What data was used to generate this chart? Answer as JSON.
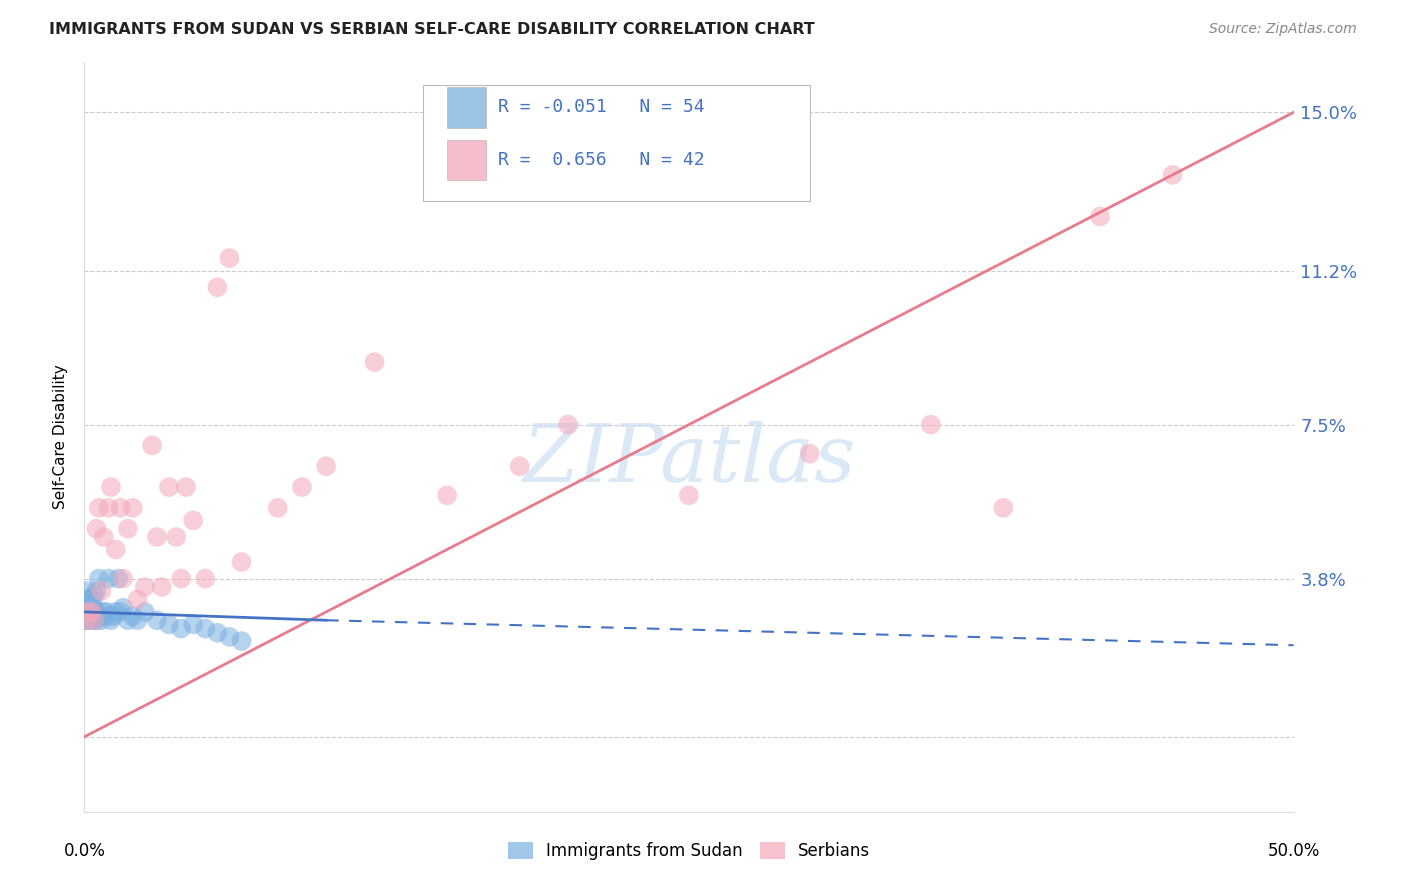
{
  "title": "IMMIGRANTS FROM SUDAN VS SERBIAN SELF-CARE DISABILITY CORRELATION CHART",
  "source": "Source: ZipAtlas.com",
  "ylabel": "Self-Care Disability",
  "yticks": [
    0.0,
    0.038,
    0.075,
    0.112,
    0.15
  ],
  "ytick_labels": [
    "",
    "3.8%",
    "7.5%",
    "11.2%",
    "15.0%"
  ],
  "xlim": [
    0.0,
    0.5
  ],
  "ylim": [
    -0.018,
    0.162
  ],
  "watermark": "ZIPatlas",
  "color_blue": "#7ab0e0",
  "color_pink": "#f4a7b9",
  "color_blue_line": "#4472c4",
  "color_pink_line": "#e87b8c",
  "sudan_x": [
    0.0002,
    0.0003,
    0.0004,
    0.0005,
    0.0006,
    0.0007,
    0.0008,
    0.0009,
    0.001,
    0.001,
    0.001,
    0.001,
    0.001,
    0.002,
    0.002,
    0.002,
    0.002,
    0.003,
    0.003,
    0.003,
    0.003,
    0.004,
    0.004,
    0.004,
    0.004,
    0.004,
    0.005,
    0.005,
    0.005,
    0.006,
    0.006,
    0.007,
    0.008,
    0.009,
    0.01,
    0.01,
    0.011,
    0.012,
    0.013,
    0.014,
    0.015,
    0.016,
    0.018,
    0.02,
    0.022,
    0.025,
    0.03,
    0.035,
    0.04,
    0.045,
    0.05,
    0.055,
    0.06,
    0.065
  ],
  "sudan_y": [
    0.03,
    0.03,
    0.029,
    0.03,
    0.028,
    0.03,
    0.031,
    0.029,
    0.035,
    0.033,
    0.03,
    0.028,
    0.03,
    0.031,
    0.029,
    0.03,
    0.032,
    0.033,
    0.03,
    0.029,
    0.028,
    0.034,
    0.03,
    0.028,
    0.031,
    0.029,
    0.035,
    0.03,
    0.028,
    0.038,
    0.029,
    0.028,
    0.03,
    0.03,
    0.038,
    0.029,
    0.028,
    0.029,
    0.03,
    0.038,
    0.03,
    0.031,
    0.028,
    0.029,
    0.028,
    0.03,
    0.028,
    0.027,
    0.026,
    0.027,
    0.026,
    0.025,
    0.024,
    0.023
  ],
  "serbian_x": [
    0.001,
    0.002,
    0.003,
    0.004,
    0.005,
    0.006,
    0.007,
    0.008,
    0.01,
    0.011,
    0.013,
    0.015,
    0.016,
    0.018,
    0.02,
    0.022,
    0.025,
    0.028,
    0.03,
    0.032,
    0.035,
    0.038,
    0.04,
    0.042,
    0.045,
    0.05,
    0.055,
    0.06,
    0.065,
    0.08,
    0.09,
    0.1,
    0.12,
    0.15,
    0.18,
    0.2,
    0.25,
    0.3,
    0.35,
    0.38,
    0.42,
    0.45
  ],
  "serbian_y": [
    0.028,
    0.03,
    0.03,
    0.028,
    0.05,
    0.055,
    0.035,
    0.048,
    0.055,
    0.06,
    0.045,
    0.055,
    0.038,
    0.05,
    0.055,
    0.033,
    0.036,
    0.07,
    0.048,
    0.036,
    0.06,
    0.048,
    0.038,
    0.06,
    0.052,
    0.038,
    0.108,
    0.115,
    0.042,
    0.055,
    0.06,
    0.065,
    0.09,
    0.058,
    0.065,
    0.075,
    0.058,
    0.068,
    0.075,
    0.055,
    0.125,
    0.135
  ],
  "blue_line_x0": 0.0,
  "blue_line_x_solid_end": 0.1,
  "blue_line_x1": 0.5,
  "blue_line_y0": 0.03,
  "blue_line_y_solid_end": 0.028,
  "blue_line_y1": 0.022,
  "pink_line_x0": 0.0,
  "pink_line_x1": 0.5,
  "pink_line_y0": 0.0,
  "pink_line_y1": 0.15
}
